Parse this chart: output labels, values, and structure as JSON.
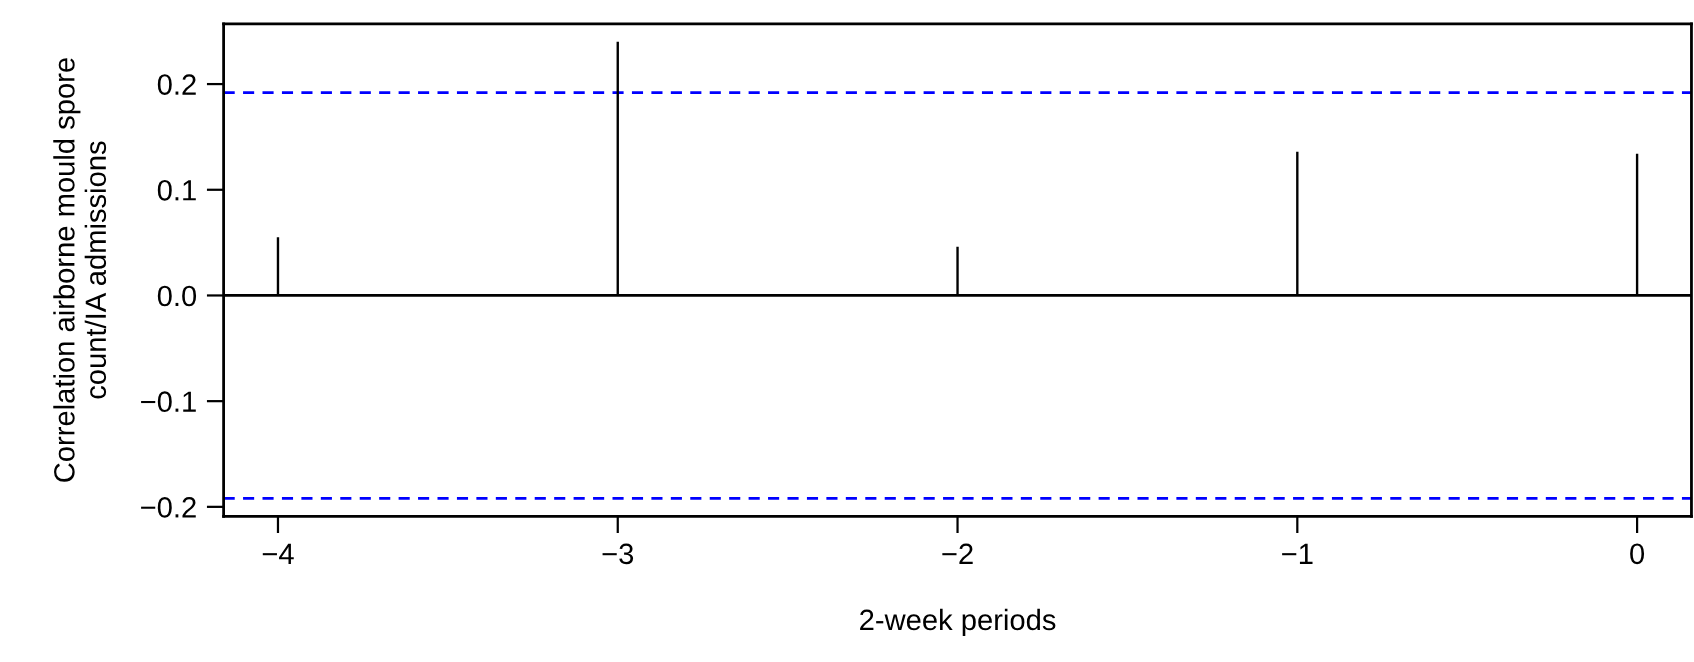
{
  "chart_data": {
    "type": "bar",
    "xlabel": "2-week periods",
    "ylabel": "Correlation airborne mould spore\ncount/IA admissions",
    "x": [
      -4,
      -3,
      -2,
      -1,
      0
    ],
    "series": [
      {
        "color": "#000000",
        "values": [
          0.055,
          0.24,
          0.046,
          0.136,
          0.134
        ]
      }
    ],
    "xlim": [
      -4.16,
      0.16
    ],
    "ylim": [
      -0.209,
      0.257
    ],
    "xticks": [
      {
        "value": -4,
        "label": "−4"
      },
      {
        "value": -3,
        "label": "−3"
      },
      {
        "value": -2,
        "label": "−2"
      },
      {
        "value": -1,
        "label": "−1"
      },
      0
    ],
    "yticks": [
      {
        "value": -0.2,
        "label": "−0.2"
      },
      {
        "value": -0.1,
        "label": "−0.1"
      },
      {
        "value": 0.0,
        "label": "0.0"
      },
      {
        "value": 0.1,
        "label": "0.1"
      },
      {
        "value": 0.2,
        "label": "0.2"
      }
    ],
    "ref_lines": [
      {
        "axis": "y",
        "value": 0,
        "color": "#000000",
        "line_style": "solid"
      },
      {
        "axis": "y",
        "value": 0.192,
        "color": "#0000ff",
        "line_style": "dashed"
      },
      {
        "axis": "y",
        "value": -0.192,
        "color": "#0000ff",
        "line_style": "dashed"
      }
    ],
    "grid": false,
    "legend": false
  }
}
